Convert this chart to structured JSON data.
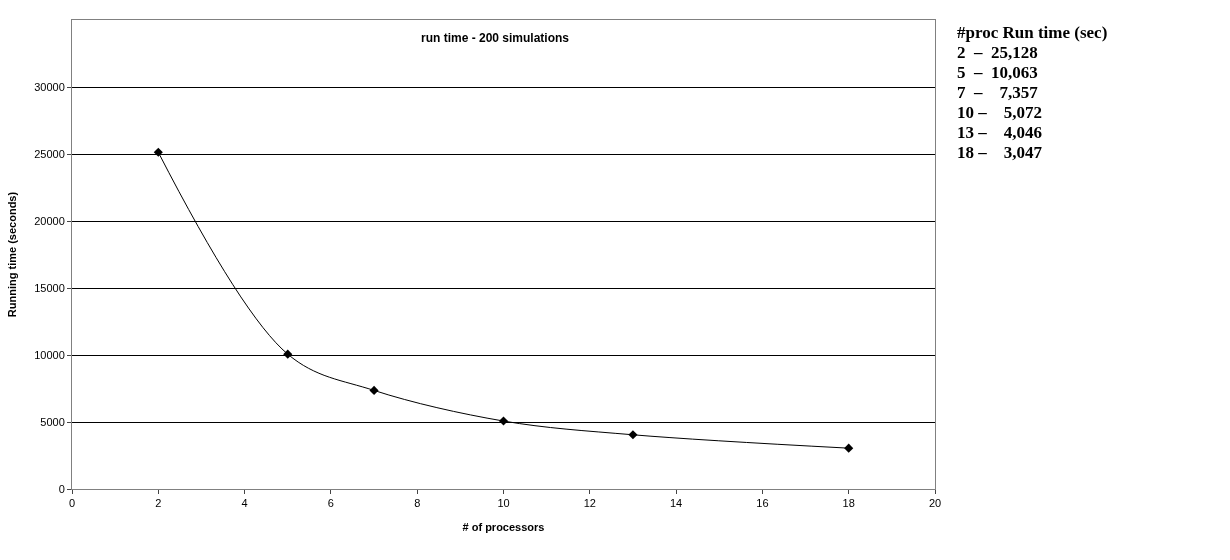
{
  "chart_data": {
    "type": "line",
    "title": "run time - 200 simulations",
    "xlabel": "# of processors",
    "ylabel": "Running time (seconds)",
    "x": [
      2,
      5,
      7,
      10,
      13,
      18
    ],
    "series": [
      {
        "color": "#000000",
        "values": [
          25128,
          10063,
          7357,
          5072,
          4046,
          3047
        ]
      }
    ],
    "xlim": [
      0,
      20
    ],
    "xticks": [
      0,
      2,
      4,
      6,
      8,
      10,
      12,
      14,
      16,
      18,
      20
    ],
    "ylim": [
      0,
      35000
    ],
    "yticks": [
      0,
      5000,
      10000,
      15000,
      20000,
      25000,
      30000
    ],
    "annotations": [
      "#proc Run time (sec)",
      "2  –  25,128",
      "5  –  10,063",
      "7  –    7,357",
      "10 –    5,072",
      "13 –    4,046",
      "18 –    3,047"
    ],
    "grid": "y",
    "marker": "diamond",
    "line_style": "solid"
  }
}
